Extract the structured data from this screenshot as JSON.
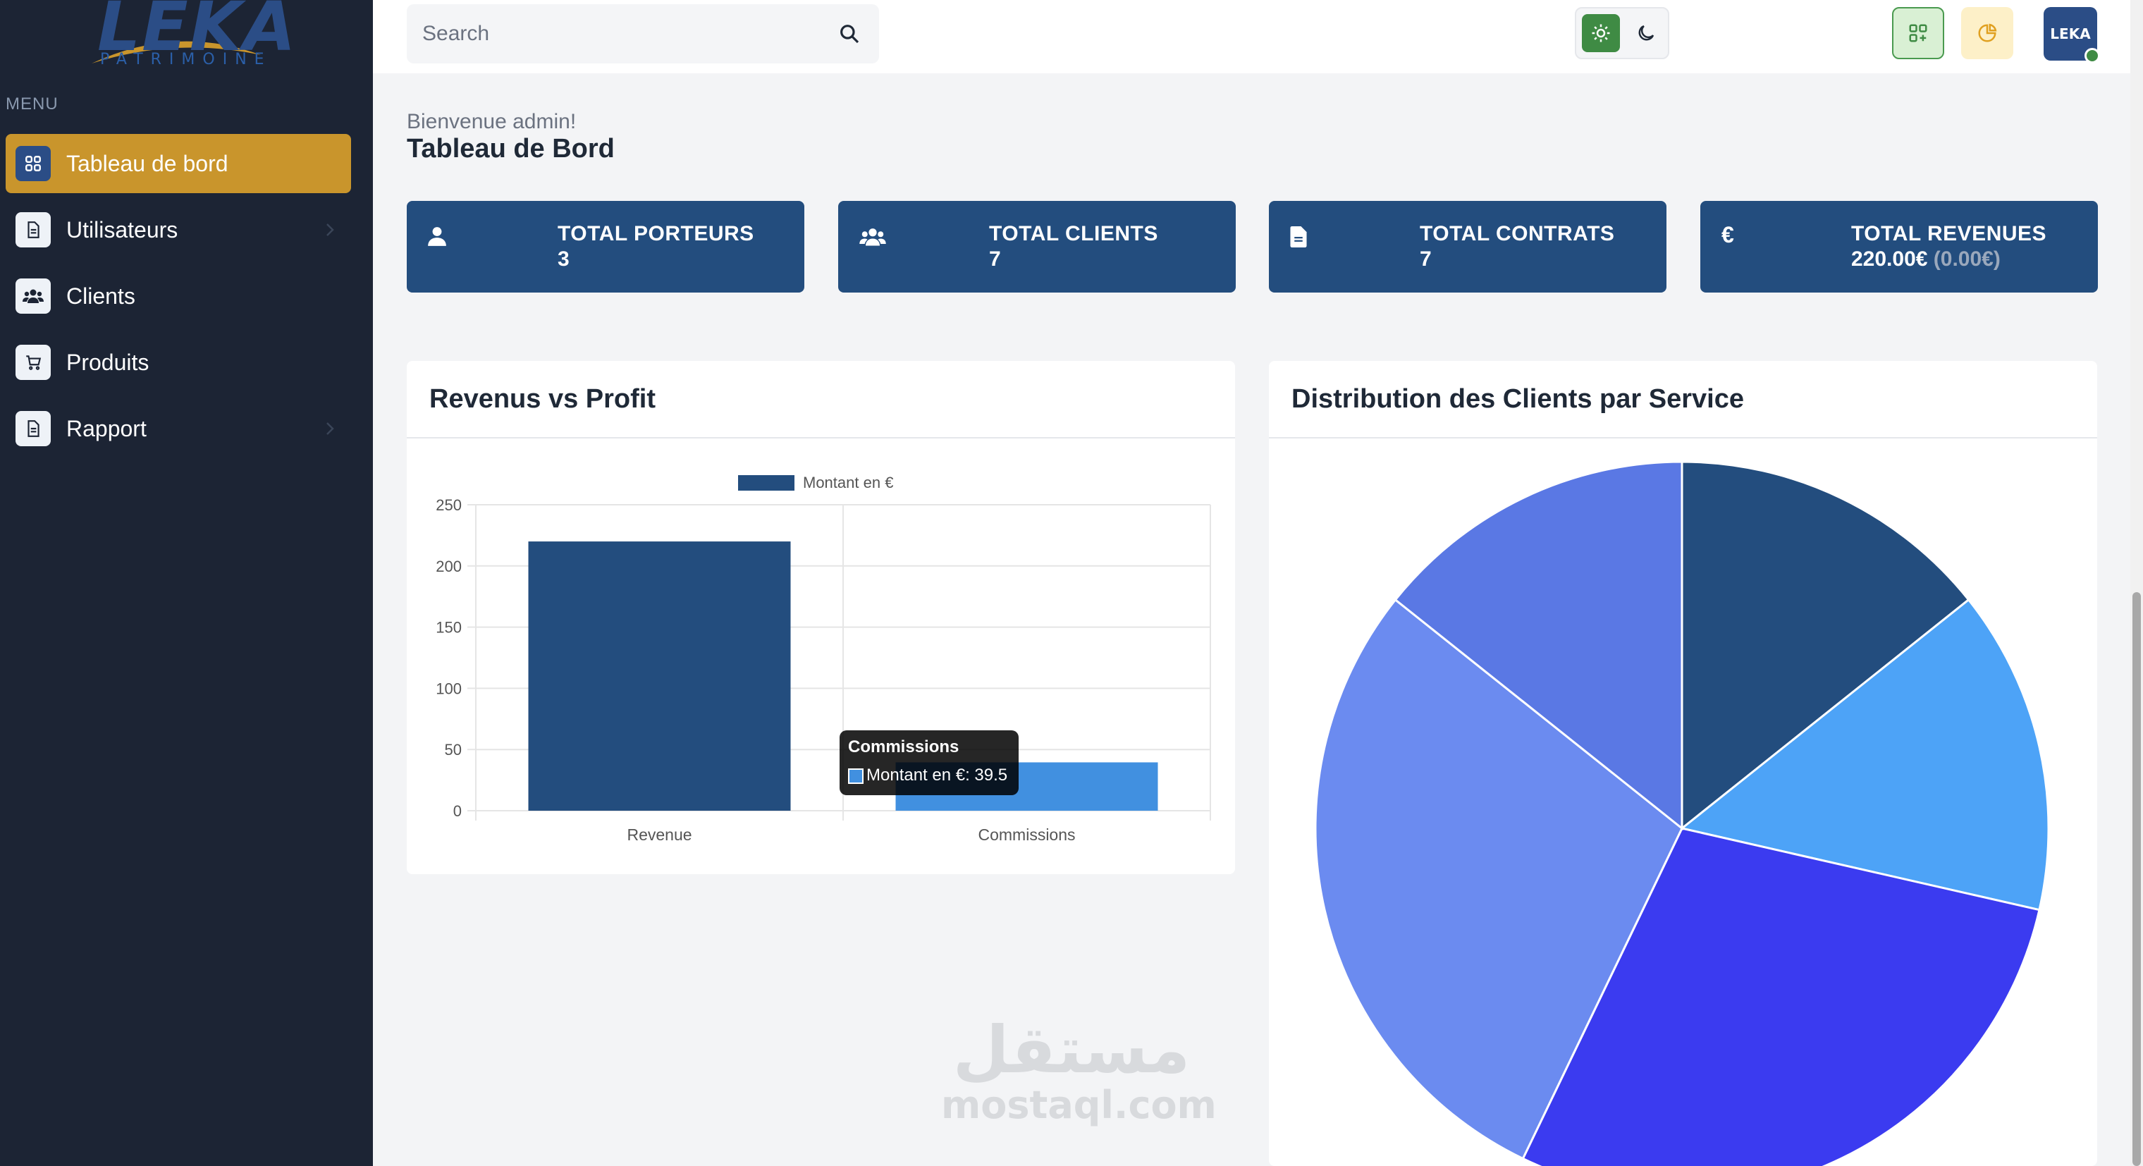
{
  "brand": {
    "logo_text": "LEKA",
    "logo_subtext": "PATRIMOINE"
  },
  "sidebar": {
    "menu_label": "MENU",
    "items": [
      {
        "label": "Tableau de bord",
        "icon": "dashboard-grid-icon",
        "active": true
      },
      {
        "label": "Utilisateurs",
        "icon": "document-icon",
        "has_chevron": true
      },
      {
        "label": "Clients",
        "icon": "users-icon"
      },
      {
        "label": "Produits",
        "icon": "cart-icon"
      },
      {
        "label": "Rapport",
        "icon": "document-icon",
        "has_chevron": true
      }
    ]
  },
  "topbar": {
    "search_placeholder": "Search",
    "avatar_text": "LEKA"
  },
  "page": {
    "welcome": "Bienvenue admin!",
    "title": "Tableau de Bord"
  },
  "stats": [
    {
      "title": "TOTAL PORTEURS",
      "value": "3",
      "icon": "user-icon"
    },
    {
      "title": "TOTAL CLIENTS",
      "value": "7",
      "icon": "users-icon"
    },
    {
      "title": "TOTAL CONTRATS",
      "value": "7",
      "icon": "file-icon"
    },
    {
      "title": "TOTAL REVENUES",
      "value": "220.00€",
      "sub_value": "(0.00€)",
      "icon": "euro-icon"
    }
  ],
  "cards": {
    "revenue_title": "Revenus vs Profit",
    "distribution_title": "Distribution des Clients par Service"
  },
  "chart_data": [
    {
      "type": "bar",
      "title": "Revenus vs Profit",
      "categories": [
        "Revenue",
        "Commissions"
      ],
      "series": [
        {
          "name": "Montant en €",
          "values": [
            220,
            39.5
          ]
        }
      ],
      "bar_colors": [
        "#234d7e",
        "#4190e0"
      ],
      "ylim": [
        0,
        250
      ],
      "yticks": [
        0,
        50,
        100,
        150,
        200,
        250
      ],
      "legend": "top-center",
      "grid": true,
      "tooltip": {
        "title": "Commissions",
        "line": "Montant en €: 39.5"
      }
    },
    {
      "type": "pie",
      "title": "Distribution des Clients par Service",
      "values": [
        1,
        1,
        2,
        2,
        1
      ],
      "colors": [
        "#234d7e",
        "#4da3f7",
        "#3b3bf0",
        "#6b8bf0",
        "#5a78e4"
      ]
    }
  ],
  "watermark": {
    "arabic": "مستقل",
    "latin": "mostaql.com"
  }
}
